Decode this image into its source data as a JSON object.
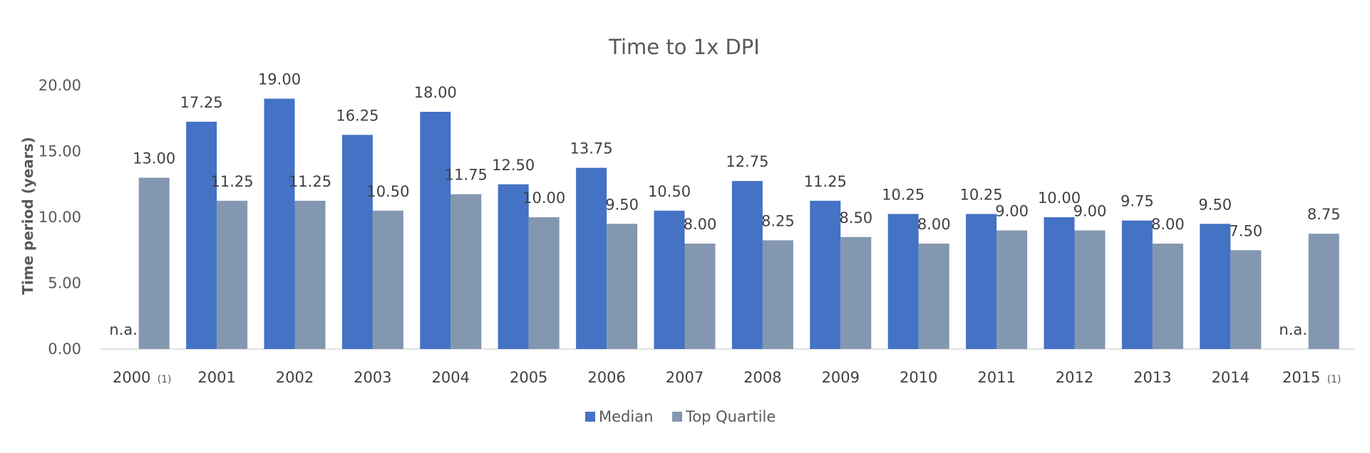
{
  "chart_data": {
    "type": "bar",
    "title": "Time to 1x DPI",
    "ylabel": "Time period (years)",
    "xlabel": "",
    "ylim": [
      0,
      20
    ],
    "yticks": [
      "0.00",
      "5.00",
      "10.00",
      "15.00",
      "20.00"
    ],
    "ytick_values": [
      0,
      5,
      10,
      15,
      20
    ],
    "categories": [
      "2000",
      "2001",
      "2002",
      "2003",
      "2004",
      "2005",
      "2006",
      "2007",
      "2008",
      "2009",
      "2010",
      "2011",
      "2012",
      "2013",
      "2014",
      "2015"
    ],
    "category_notes": [
      "(1)",
      "",
      "",
      "",
      "",
      "",
      "",
      "",
      "",
      "",
      "",
      "",
      "",
      "",
      "",
      "(1)"
    ],
    "series": [
      {
        "name": "Median",
        "color": "#4472C4",
        "values": [
          null,
          17.25,
          19.0,
          16.25,
          18.0,
          12.5,
          13.75,
          10.5,
          12.75,
          11.25,
          10.25,
          10.25,
          10.0,
          9.75,
          9.5,
          null
        ],
        "labels": [
          "n.a.",
          "17.25",
          "19.00",
          "16.25",
          "18.00",
          "12.50",
          "13.75",
          "10.50",
          "12.75",
          "11.25",
          "10.25",
          "10.25",
          "10.00",
          "9.75",
          "9.50",
          "n.a."
        ]
      },
      {
        "name": "Top Quartile",
        "color": "#8497B0",
        "values": [
          13.0,
          11.25,
          11.25,
          10.5,
          11.75,
          10.0,
          9.5,
          8.0,
          8.25,
          8.5,
          8.0,
          9.0,
          9.0,
          8.0,
          7.5,
          8.75
        ],
        "labels": [
          "13.00",
          "11.25",
          "11.25",
          "10.50",
          "11.75",
          "10.00",
          "9.50",
          "8.00",
          "8.25",
          "8.50",
          "8.00",
          "9.00",
          "9.00",
          "8.00",
          "7.50",
          "8.75"
        ]
      }
    ],
    "legend_position": "bottom-center",
    "grid": false
  }
}
